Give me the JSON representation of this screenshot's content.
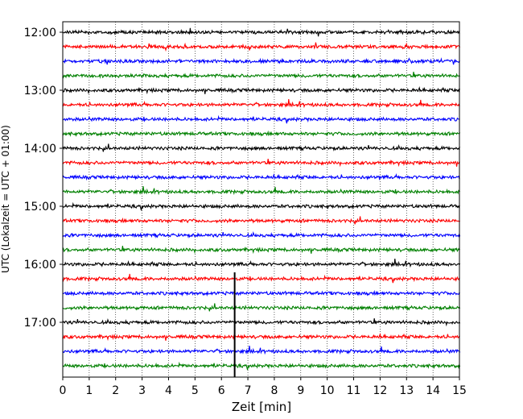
{
  "chart_data": {
    "type": "line",
    "title": "",
    "xlabel": "Zeit  [min]",
    "ylabel": "UTC (Lokalzeit = UTC + 01:00)",
    "xlim": [
      0,
      15
    ],
    "x_ticks": [
      "0",
      "1",
      "2",
      "3",
      "4",
      "5",
      "6",
      "7",
      "8",
      "9",
      "10",
      "11",
      "12",
      "13",
      "14",
      "15"
    ],
    "y_ticks": [
      "12:00",
      "13:00",
      "14:00",
      "15:00",
      "16:00",
      "17:00"
    ],
    "grid": "vertical dotted",
    "rows_per_hour": 4,
    "row_minutes": 15,
    "start_hour": "12:00",
    "trace_colors": [
      "#000000",
      "#ff0000",
      "#0000ff",
      "#008000"
    ],
    "series": [
      {
        "time": "12:00",
        "color": "#000000"
      },
      {
        "time": "12:15",
        "color": "#ff0000"
      },
      {
        "time": "12:30",
        "color": "#0000ff"
      },
      {
        "time": "12:45",
        "color": "#008000"
      },
      {
        "time": "13:00",
        "color": "#000000"
      },
      {
        "time": "13:15",
        "color": "#ff0000"
      },
      {
        "time": "13:30",
        "color": "#0000ff"
      },
      {
        "time": "13:45",
        "color": "#008000"
      },
      {
        "time": "14:00",
        "color": "#000000"
      },
      {
        "time": "14:15",
        "color": "#ff0000"
      },
      {
        "time": "14:30",
        "color": "#0000ff"
      },
      {
        "time": "14:45",
        "color": "#008000"
      },
      {
        "time": "15:00",
        "color": "#000000"
      },
      {
        "time": "15:15",
        "color": "#ff0000"
      },
      {
        "time": "15:30",
        "color": "#0000ff"
      },
      {
        "time": "15:45",
        "color": "#008000"
      },
      {
        "time": "16:00",
        "color": "#000000"
      },
      {
        "time": "16:15",
        "color": "#ff0000"
      },
      {
        "time": "16:30",
        "color": "#0000ff"
      },
      {
        "time": "16:45",
        "color": "#008000"
      },
      {
        "time": "17:00",
        "color": "#000000"
      },
      {
        "time": "17:15",
        "color": "#ff0000"
      },
      {
        "time": "17:30",
        "color": "#0000ff"
      },
      {
        "time": "17:45",
        "color": "#008000"
      }
    ],
    "event_marker": {
      "x_min": 6.5,
      "from_time": "16:15",
      "to_time": "17:45"
    }
  }
}
